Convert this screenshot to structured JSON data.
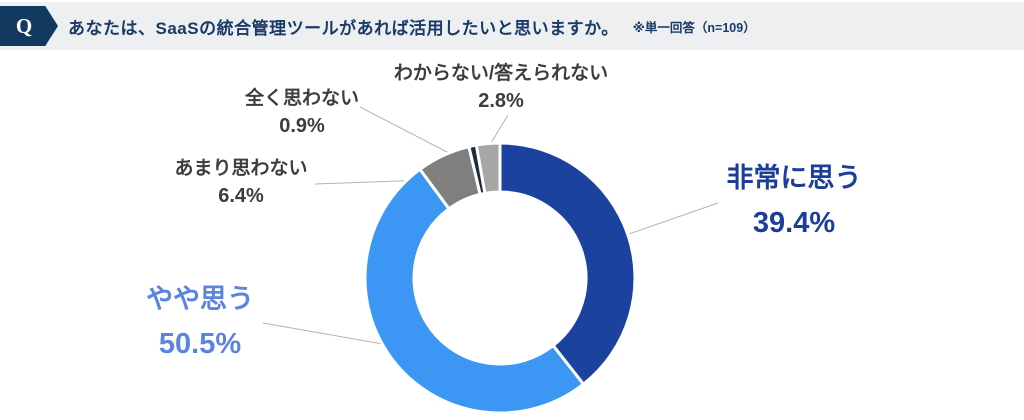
{
  "header": {
    "q_label": "Q",
    "title": "あなたは、SaaSの統合管理ツールがあれば活用したいと思いますか。",
    "note": "※単一回答（n=109）",
    "badge_bg": "#12395f",
    "bar_bg": "#edeff0",
    "text_color": "#1a3a68"
  },
  "chart_data": {
    "type": "pie",
    "subtype": "donut",
    "title": "あなたは、SaaSの統合管理ツールがあれば活用したいと思いますか。",
    "sample_note": "※単一回答（n=109）",
    "n": 109,
    "unit": "%",
    "direction": "clockwise",
    "start_angle_deg": 0,
    "donut_hole_ratio": 0.64,
    "gap_color": "#ffffff",
    "leader_line_color": "#b3b3b3",
    "segments": [
      {
        "label": "非常に思う",
        "value": 39.4,
        "color": "#1c429f",
        "label_color": "#1c3e9b"
      },
      {
        "label": "やや思う",
        "value": 50.5,
        "color": "#3b97f3",
        "label_color": "#5b84e0"
      },
      {
        "label": "あまり思わない",
        "value": 6.4,
        "color": "#7f7f7f",
        "label_color": "#3d3d3d"
      },
      {
        "label": "全く思わない",
        "value": 0.9,
        "color": "#1e2b3c",
        "label_color": "#3d3d3d"
      },
      {
        "label": "わからない/答えられない",
        "value": 2.8,
        "color": "#a6a6a6",
        "label_color": "#3d3d3d"
      }
    ]
  }
}
